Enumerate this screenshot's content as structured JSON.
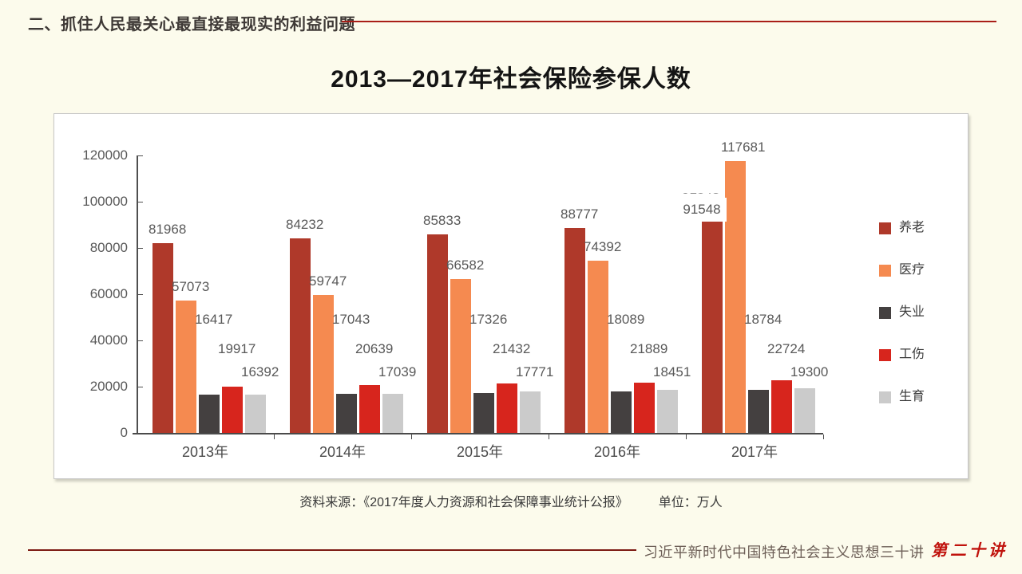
{
  "header": {
    "section_title": "二、抓住人民最关心最直接最现实的利益问题"
  },
  "slide_title": "2013—2017年社会保险参保人数",
  "chart_data": {
    "type": "bar",
    "title": "2013—2017年社会保险参保人数",
    "categories": [
      "2013年",
      "2014年",
      "2015年",
      "2016年",
      "2017年"
    ],
    "series": [
      {
        "name": "养老",
        "color": "#AF392A",
        "values": [
          81968,
          84232,
          85833,
          88777,
          91548
        ]
      },
      {
        "name": "医疗",
        "color": "#F58A50",
        "values": [
          57073,
          59747,
          66582,
          74392,
          117681
        ]
      },
      {
        "name": "失业",
        "color": "#444040",
        "values": [
          16417,
          17043,
          17326,
          18089,
          18784
        ]
      },
      {
        "name": "工伤",
        "color": "#D7251D",
        "values": [
          19917,
          20639,
          21432,
          21889,
          22724
        ]
      },
      {
        "name": "生育",
        "color": "#CBCBCB",
        "values": [
          16392,
          17039,
          17771,
          18451,
          19300
        ]
      }
    ],
    "ylim": [
      0,
      120000
    ],
    "ytick_step": 20000,
    "yticks": [
      "0",
      "20000",
      "40000",
      "60000",
      "80000",
      "100000",
      "120000"
    ],
    "grid": false,
    "legend_position": "right-inside",
    "ghost_label": {
      "series_index": 0,
      "category_index": 4,
      "text": "91548"
    },
    "unit": "万人"
  },
  "source_note": "资料来源：《2017年度人力资源和社会保障事业统计公报》",
  "unit_note": "单位：万人",
  "footer": {
    "course_title": "习近平新时代中国特色社会主义思想三十讲",
    "lecture_badge": "第二十讲"
  },
  "colors": {
    "background": "#FCFBEC",
    "header_rule": "#A91E18",
    "footer_rule": "#7C1A12",
    "badge_red": "#C0120C",
    "axis_text": "#595959",
    "panel_border": "#C6C6C6"
  }
}
